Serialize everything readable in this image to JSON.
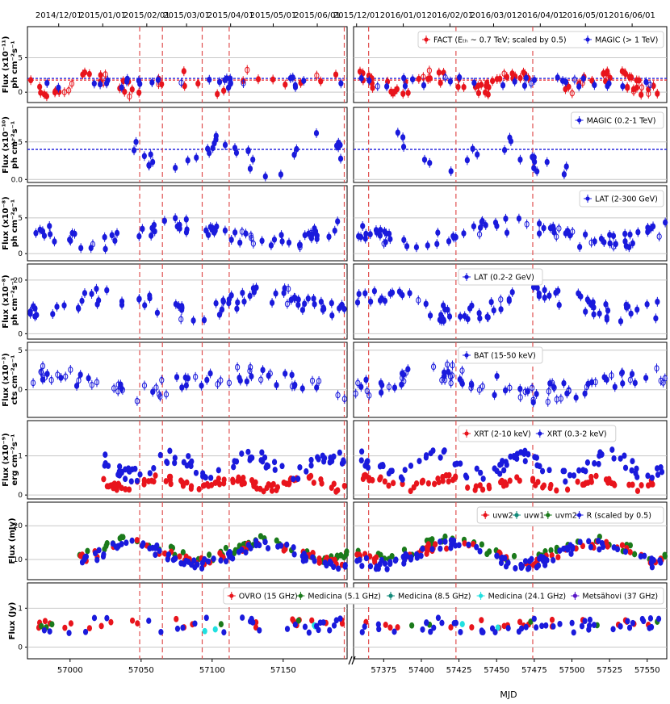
{
  "chart_data": {
    "type": "scatter",
    "x_label": "MJD",
    "top_date_ticks_left": [
      "2014/12/01",
      "2015/01/01",
      "2015/02/01",
      "2015/03/01",
      "2015/04/01",
      "2015/05/01",
      "2015/06/01"
    ],
    "top_date_ticks_right": [
      "2015/12/01",
      "2016/01/01",
      "2016/02/01",
      "2016/03/01",
      "2016/04/01",
      "2016/05/01",
      "2016/06/01"
    ],
    "x_ticks_left": [
      "57000",
      "57050",
      "57100",
      "57150"
    ],
    "x_ticks_right": [
      "57375",
      "57400",
      "57425",
      "57450",
      "57475",
      "57500",
      "57525",
      "57550"
    ],
    "xlim_left": [
      56970,
      57195
    ],
    "xlim_right": [
      57355,
      57563
    ],
    "vertical_lines_mjd": [
      57049,
      57065,
      57093,
      57112,
      57193,
      57365,
      57423,
      57474
    ],
    "grid": true,
    "panels": [
      {
        "id": "tev",
        "ylabel": [
          "Flux (x10⁻¹¹)",
          "ph cm⁻²s⁻¹"
        ],
        "ylim": [
          -1.5,
          9.5
        ],
        "yticks": [
          "0",
          "5"
        ],
        "hline": 2,
        "legend": [
          "FACT (Eₜₕ ~ 0.7 TeV; scaled by 0.5)",
          "MAGIC (> 1 TeV)"
        ],
        "legend_pos": "top-right"
      },
      {
        "id": "magic",
        "ylabel": [
          "Flux (x10⁻¹⁰)",
          "ph cm⁻²s⁻¹"
        ],
        "ylim": [
          -0.2,
          4.8
        ],
        "yticks": [
          "0.0",
          "2.5"
        ],
        "hline": 2,
        "legend": [
          "MAGIC (0.2-1 TeV)"
        ],
        "legend_pos": "top-right"
      },
      {
        "id": "lat1",
        "ylabel": [
          "Flux (x10⁻⁸)",
          "ph cm⁻²s⁻¹"
        ],
        "ylim": [
          -1,
          9.5
        ],
        "yticks": [
          "0",
          "5"
        ],
        "legend": [
          "LAT (2-300 GeV)"
        ],
        "legend_pos": "top-right"
      },
      {
        "id": "lat2",
        "ylabel": [
          "Flux (x10⁻⁸)",
          "ph cm⁻²s⁻¹"
        ],
        "ylim": [
          -2,
          26
        ],
        "yticks": [
          "0",
          "20"
        ],
        "legend": [
          "LAT (0.2-2 GeV)"
        ],
        "legend_pos": "top-center"
      },
      {
        "id": "bat",
        "ylabel": [
          "Flux (x10⁻³)",
          "cts cm⁻²s⁻¹"
        ],
        "ylim": [
          -3.5,
          6
        ],
        "yticks": [
          "0",
          "5"
        ],
        "legend": [
          "BAT (15-50 keV)"
        ],
        "legend_pos": "top-center"
      },
      {
        "id": "xrt",
        "ylabel": [
          "Flux (x10⁻⁹)",
          "erg cm⁻²s⁻¹"
        ],
        "ylim": [
          -0.1,
          1.9
        ],
        "yticks": [
          "0",
          "1"
        ],
        "legend": [
          "XRT (2-10 keV)",
          "XRT (0.3-2 keV)"
        ],
        "legend_pos": "top-center"
      },
      {
        "id": "uv",
        "ylabel": [
          "Flux (mJy)"
        ],
        "ylim": [
          4,
          27
        ],
        "yticks": [
          "10",
          "20"
        ],
        "legend": [
          "uvw2",
          "uvw1",
          "uvm2",
          "R (scaled by 0.5)"
        ],
        "legend_pos": "top-right"
      },
      {
        "id": "radio",
        "ylabel": [
          "Flux (Jy)"
        ],
        "ylim": [
          -0.3,
          1.65
        ],
        "yticks": [
          "0",
          "1"
        ],
        "legend": [
          "OVRO (15 GHz)",
          "Medicina (5.1 GHz)",
          "Medicina (8.5 GHz)",
          "Medicina (24.1 GHz)",
          "Metsähovi (37 GHz)"
        ],
        "legend_pos": "top-right"
      }
    ]
  },
  "colors": {
    "red": "#e8141c",
    "blue": "#1a1adc",
    "green": "#1b7a1b",
    "teal": "#138a7a",
    "cyan": "#20e0e0",
    "purple": "#5a18c8",
    "vline": "#e05050",
    "grid": "#c8c8c8"
  }
}
